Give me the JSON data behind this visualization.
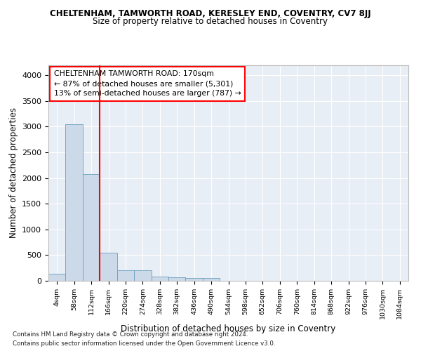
{
  "title": "CHELTENHAM, TAMWORTH ROAD, KERESLEY END, COVENTRY, CV7 8JJ",
  "subtitle": "Size of property relative to detached houses in Coventry",
  "xlabel": "Distribution of detached houses by size in Coventry",
  "ylabel": "Number of detached properties",
  "bar_color": "#ccd9e8",
  "bar_edge_color": "#6a9ec0",
  "highlight_line_color": "red",
  "bins": [
    "4sqm",
    "58sqm",
    "112sqm",
    "166sqm",
    "220sqm",
    "274sqm",
    "328sqm",
    "382sqm",
    "436sqm",
    "490sqm",
    "544sqm",
    "598sqm",
    "652sqm",
    "706sqm",
    "760sqm",
    "814sqm",
    "868sqm",
    "922sqm",
    "976sqm",
    "1030sqm",
    "1084sqm"
  ],
  "values": [
    130,
    3050,
    2075,
    540,
    210,
    210,
    80,
    65,
    55,
    50,
    5,
    3,
    2,
    2,
    1,
    1,
    1,
    1,
    1,
    0,
    0
  ],
  "ylim": [
    0,
    4200
  ],
  "yticks": [
    0,
    500,
    1000,
    1500,
    2000,
    2500,
    3000,
    3500,
    4000
  ],
  "annotation_title": "CHELTENHAM TAMWORTH ROAD: 170sqm",
  "annotation_line1": "← 87% of detached houses are smaller (5,301)",
  "annotation_line2": "13% of semi-detached houses are larger (787) →",
  "footer1": "Contains HM Land Registry data © Crown copyright and database right 2024.",
  "footer2": "Contains public sector information licensed under the Open Government Licence v3.0.",
  "background_color": "#e8eef5",
  "grid_color": "#ffffff",
  "fig_bg": "#ffffff",
  "red_line_x": 2.5
}
